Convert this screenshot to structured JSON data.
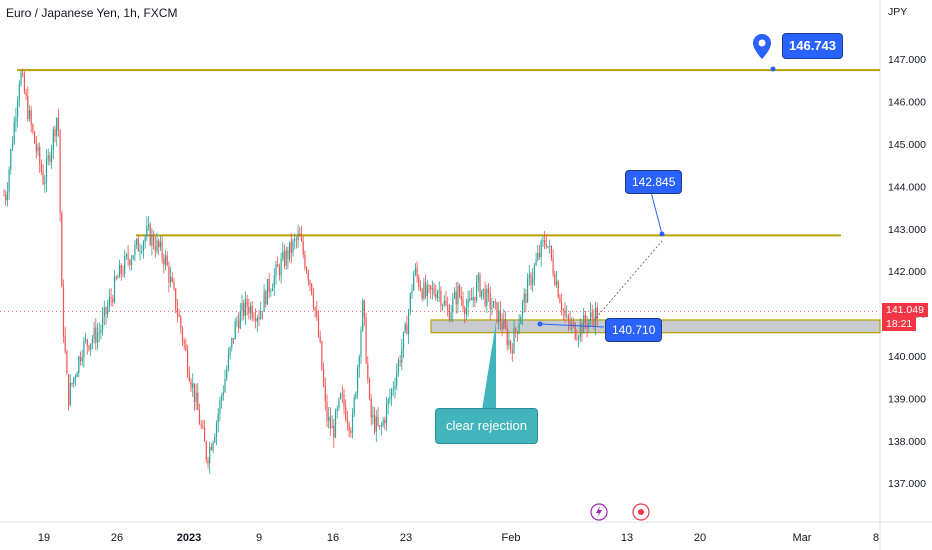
{
  "header": {
    "symbol_title": "Euro / Japanese Yen, 1h, FXCM"
  },
  "axis": {
    "currency_label": "JPY"
  },
  "colors": {
    "up": "#26a69a",
    "down": "#ef5350",
    "level_line": "#b8a100",
    "callout_blue": "#2962ff",
    "zone_fill": "#c8cbd0",
    "rejection_box": "#42b4bb",
    "last_price": "#f23645"
  },
  "chart_data": {
    "type": "candlestick",
    "title": "Euro / Japanese Yen, 1h, FXCM",
    "ylim": [
      136.2,
      148.0
    ],
    "y_ticks": [
      "147.000",
      "146.000",
      "145.000",
      "144.000",
      "143.000",
      "142.000",
      "141.000",
      "140.000",
      "139.000",
      "138.000",
      "137.000"
    ],
    "x_ticks": [
      "19",
      "26",
      "2023",
      "9",
      "16",
      "23",
      "Feb",
      "13",
      "20",
      "Mar",
      "8"
    ],
    "price_path": [
      {
        "x": "Dec 15",
        "y": 143.8
      },
      {
        "x": "Dec 16",
        "y": 146.7
      },
      {
        "x": "Dec 17",
        "y": 145.2
      },
      {
        "x": "Dec 18",
        "y": 144.1
      },
      {
        "x": "Dec 19",
        "y": 145.8
      },
      {
        "x": "Dec 20",
        "y": 141.2
      },
      {
        "x": "Dec 21",
        "y": 139.0
      },
      {
        "x": "Dec 22",
        "y": 140.2
      },
      {
        "x": "Dec 23",
        "y": 140.6
      },
      {
        "x": "Dec 24",
        "y": 141.3
      },
      {
        "x": "Dec 26",
        "y": 141.8
      },
      {
        "x": "Dec 27",
        "y": 142.3
      },
      {
        "x": "Dec 28",
        "y": 142.9
      },
      {
        "x": "Dec 29",
        "y": 142.3
      },
      {
        "x": "Dec 30",
        "y": 141.0
      },
      {
        "x": "Dec 31",
        "y": 139.8
      },
      {
        "x": "Jan 2",
        "y": 138.9
      },
      {
        "x": "Jan 3",
        "y": 137.6
      },
      {
        "x": "Jan 4",
        "y": 138.4
      },
      {
        "x": "Jan 5",
        "y": 139.6
      },
      {
        "x": "Jan 6",
        "y": 140.8
      },
      {
        "x": "Jan 8",
        "y": 141.2
      },
      {
        "x": "Jan 9",
        "y": 141.0
      },
      {
        "x": "Jan 10",
        "y": 141.6
      },
      {
        "x": "Jan 11",
        "y": 142.2
      },
      {
        "x": "Jan 12",
        "y": 142.8
      },
      {
        "x": "Jan 13",
        "y": 141.6
      },
      {
        "x": "Jan 14",
        "y": 140.2
      },
      {
        "x": "Jan 15",
        "y": 138.6
      },
      {
        "x": "Jan 16",
        "y": 138.2
      },
      {
        "x": "Jan 17",
        "y": 139.0
      },
      {
        "x": "Jan 18",
        "y": 138.3
      },
      {
        "x": "Jan 19",
        "y": 141.2
      },
      {
        "x": "Jan 20",
        "y": 138.6
      },
      {
        "x": "Jan 21",
        "y": 138.2
      },
      {
        "x": "Jan 22",
        "y": 139.2
      },
      {
        "x": "Jan 23",
        "y": 140.6
      },
      {
        "x": "Jan 24",
        "y": 142.0
      },
      {
        "x": "Jan 25",
        "y": 141.4
      },
      {
        "x": "Jan 26",
        "y": 141.6
      },
      {
        "x": "Jan 27",
        "y": 141.0
      },
      {
        "x": "Jan 29",
        "y": 141.5
      },
      {
        "x": "Jan 30",
        "y": 141.1
      },
      {
        "x": "Jan 31",
        "y": 141.7
      },
      {
        "x": "Feb 1",
        "y": 141.3
      },
      {
        "x": "Feb 2",
        "y": 140.9
      },
      {
        "x": "Feb 3",
        "y": 140.2
      },
      {
        "x": "Feb 4",
        "y": 141.8
      },
      {
        "x": "Feb 5",
        "y": 142.8
      },
      {
        "x": "Feb 6",
        "y": 142.1
      },
      {
        "x": "Feb 7",
        "y": 140.8
      },
      {
        "x": "Feb 8",
        "y": 140.6
      },
      {
        "x": "Feb 9",
        "y": 141.0
      }
    ],
    "resistance_levels": [
      146.743,
      142.845
    ],
    "support_zone": [
      140.55,
      140.85
    ],
    "price_labels": [
      "146.743",
      "142.845",
      "140.710"
    ],
    "last_price": "141.049",
    "countdown": "18:21",
    "annotations": [
      "clear rejection"
    ]
  }
}
